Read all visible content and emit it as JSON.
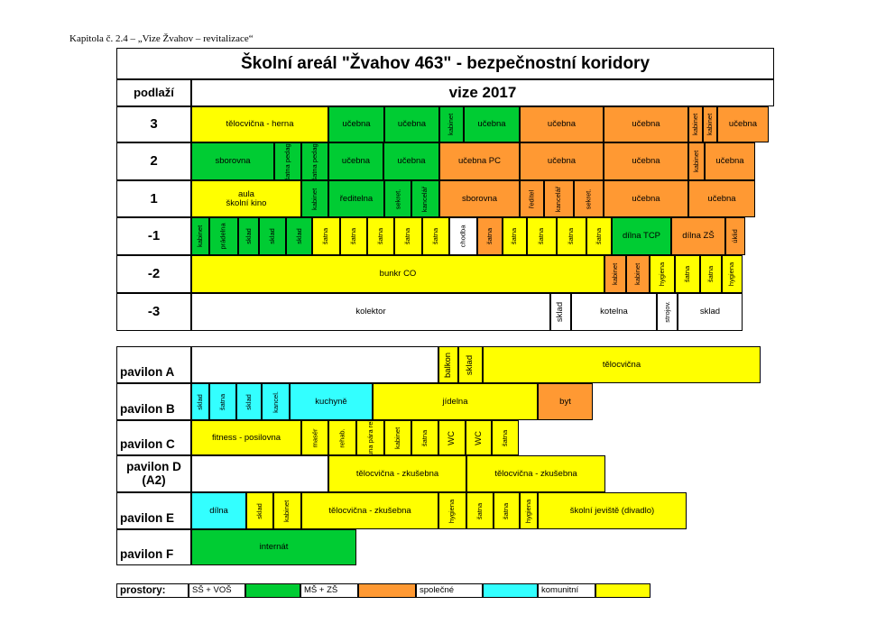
{
  "caption": "Kapitola č. 2.4 – „Vize Žvahov – revitalizace“",
  "title": "Školní areál  \"Žvahov 463\" - bezpečnostní koridory",
  "floor_header": "podlaží",
  "vize": "vize  2017",
  "colors": {
    "yellow": "#ffff00",
    "green": "#00cc33",
    "orange": "#ff9933",
    "cyan": "#33ffff",
    "white": "#ffffff"
  },
  "floors": [
    {
      "label": "3",
      "cells": [
        {
          "text": "tělocvična - herna",
          "w": 152,
          "c": "yellow"
        },
        {
          "text": "učebna",
          "w": 62,
          "c": "green"
        },
        {
          "text": "učebna",
          "w": 61,
          "c": "green"
        },
        {
          "text": "kabinet",
          "w": 27,
          "c": "green",
          "v": true
        },
        {
          "text": "učebna",
          "w": 62,
          "c": "green"
        },
        {
          "text": "učebna",
          "w": 93,
          "c": "orange"
        },
        {
          "text": "učebna",
          "w": 94,
          "c": "orange"
        },
        {
          "text": "kabinet",
          "w": 16,
          "c": "orange",
          "v": true
        },
        {
          "text": "kabinet",
          "w": 16,
          "c": "orange",
          "v": true
        },
        {
          "text": "učebna",
          "w": 57,
          "c": "orange"
        }
      ]
    },
    {
      "label": "2",
      "cells": [
        {
          "text": "sborovna",
          "w": 92,
          "c": "green"
        },
        {
          "text": "šatna\npedag.",
          "w": 30,
          "c": "green",
          "v": true
        },
        {
          "text": "šatna\npedag.",
          "w": 30,
          "c": "green",
          "v": true
        },
        {
          "text": "učebna",
          "w": 61,
          "c": "green"
        },
        {
          "text": "učebna",
          "w": 62,
          "c": "green"
        },
        {
          "text": "učebna PC",
          "w": 89,
          "c": "orange"
        },
        {
          "text": "učebna",
          "w": 93,
          "c": "orange"
        },
        {
          "text": "učebna",
          "w": 94,
          "c": "orange"
        },
        {
          "text": "kabinet",
          "w": 18,
          "c": "orange",
          "v": true
        },
        {
          "text": "učebna",
          "w": 56,
          "c": "orange"
        }
      ]
    },
    {
      "label": "1",
      "cells": [
        {
          "text": "aula\nškolní kino",
          "w": 122,
          "c": "yellow"
        },
        {
          "text": "kabinet",
          "w": 30,
          "c": "green",
          "v": true
        },
        {
          "text": "ředitelna",
          "w": 62,
          "c": "green"
        },
        {
          "text": "sekret.",
          "w": 30,
          "c": "green",
          "v": true
        },
        {
          "text": "kancelář",
          "w": 31,
          "c": "green",
          "v": true
        },
        {
          "text": "sborovna",
          "w": 89,
          "c": "orange"
        },
        {
          "text": "ředitel",
          "w": 27,
          "c": "orange",
          "v": true
        },
        {
          "text": "kancelář",
          "w": 33,
          "c": "orange",
          "v": true
        },
        {
          "text": "sekret.",
          "w": 33,
          "c": "orange",
          "v": true
        },
        {
          "text": "učebna",
          "w": 94,
          "c": "orange"
        },
        {
          "text": "učebna",
          "w": 74,
          "c": "orange"
        }
      ]
    },
    {
      "label": "-1",
      "cells": [
        {
          "text": "kabinet",
          "w": 20,
          "c": "green",
          "v": true
        },
        {
          "text": "prádelna",
          "w": 32,
          "c": "green",
          "v": true
        },
        {
          "text": "sklad",
          "w": 23,
          "c": "green",
          "v": true
        },
        {
          "text": "sklad",
          "w": 30,
          "c": "green",
          "v": true
        },
        {
          "text": "sklad",
          "w": 29,
          "c": "green",
          "v": true
        },
        {
          "text": "šatna",
          "w": 31,
          "c": "yellow",
          "v": true
        },
        {
          "text": "šatna",
          "w": 30,
          "c": "yellow",
          "v": true
        },
        {
          "text": "šatna",
          "w": 30,
          "c": "yellow",
          "v": true
        },
        {
          "text": "šatna",
          "w": 31,
          "c": "yellow",
          "v": true
        },
        {
          "text": "šatna",
          "w": 30,
          "c": "yellow",
          "v": true
        },
        {
          "text": "chodba",
          "w": 31,
          "c": "white",
          "v": true
        },
        {
          "text": "šatna",
          "w": 28,
          "c": "orange",
          "v": true
        },
        {
          "text": "šatna",
          "w": 27,
          "c": "yellow",
          "v": true
        },
        {
          "text": "šatna",
          "w": 33,
          "c": "yellow",
          "v": true
        },
        {
          "text": "šatna",
          "w": 33,
          "c": "yellow",
          "v": true
        },
        {
          "text": "šatna",
          "w": 28,
          "c": "yellow",
          "v": true
        },
        {
          "text": "dílna TCP",
          "w": 66,
          "c": "green"
        },
        {
          "text": "dílna ZŠ",
          "w": 60,
          "c": "orange"
        },
        {
          "text": "úklid",
          "w": 22,
          "c": "orange",
          "v": true
        }
      ]
    },
    {
      "label": "-2",
      "cells": [
        {
          "text": "bunkr  CO",
          "w": 458,
          "c": "yellow"
        },
        {
          "text": "kabinet",
          "w": 24,
          "c": "orange",
          "v": true
        },
        {
          "text": "kabinet",
          "w": 26,
          "c": "orange",
          "v": true
        },
        {
          "text": "hygiena",
          "w": 28,
          "c": "yellow",
          "v": true
        },
        {
          "text": "šatna",
          "w": 28,
          "c": "yellow",
          "v": true
        },
        {
          "text": "šatna",
          "w": 24,
          "c": "yellow",
          "v": true
        },
        {
          "text": "hygiena",
          "w": 23,
          "c": "yellow",
          "v": true
        }
      ]
    },
    {
      "label": "-3",
      "cells": [
        {
          "text": "kolektor",
          "w": 398,
          "c": "white"
        },
        {
          "text": "sklad",
          "w": 23,
          "c": "white",
          "v": true,
          "big": true
        },
        {
          "text": "kotelna",
          "w": 95,
          "c": "white"
        },
        {
          "text": "strojov.",
          "w": 23,
          "c": "white",
          "v": true
        },
        {
          "text": "sklad",
          "w": 72,
          "c": "white"
        }
      ]
    }
  ],
  "pavilions": [
    {
      "label": "pavilon A",
      "cells": [
        {
          "text": "",
          "w": 274,
          "c": "white"
        },
        {
          "text": "balkon",
          "w": 22,
          "c": "yellow",
          "v": true,
          "big": true
        },
        {
          "text": "sklad",
          "w": 27,
          "c": "yellow",
          "v": true,
          "big": true
        },
        {
          "text": "tělocvična",
          "w": 308,
          "c": "yellow"
        }
      ]
    },
    {
      "label": "pavilon B",
      "cells": [
        {
          "text": "sklad",
          "w": 20,
          "c": "cyan",
          "v": true
        },
        {
          "text": "šatna",
          "w": 30,
          "c": "cyan",
          "v": true
        },
        {
          "text": "sklad",
          "w": 28,
          "c": "cyan",
          "v": true
        },
        {
          "text": "kancel.",
          "w": 31,
          "c": "cyan",
          "v": true
        },
        {
          "text": "kuchyně",
          "w": 92,
          "c": "cyan"
        },
        {
          "text": "jídelna",
          "w": 183,
          "c": "yellow"
        },
        {
          "text": "byt",
          "w": 61,
          "c": "orange"
        }
      ]
    },
    {
      "label": "pavilon C",
      "cells": [
        {
          "text": "fitness - posilovna",
          "w": 122,
          "c": "yellow"
        },
        {
          "text": "masér",
          "w": 30,
          "c": "yellow",
          "v": true
        },
        {
          "text": "rehab.",
          "w": 31,
          "c": "yellow",
          "v": true
        },
        {
          "text": "sauna\npára\nrelax",
          "w": 31,
          "c": "yellow",
          "v": true
        },
        {
          "text": "kabinet",
          "w": 30,
          "c": "yellow",
          "v": true
        },
        {
          "text": "šatna",
          "w": 30,
          "c": "yellow",
          "v": true
        },
        {
          "text": "WC",
          "w": 30,
          "c": "yellow",
          "v": true,
          "big": true
        },
        {
          "text": "WC",
          "w": 29,
          "c": "yellow",
          "v": true,
          "big": true
        },
        {
          "text": "šatna",
          "w": 30,
          "c": "yellow",
          "v": true
        }
      ]
    },
    {
      "label": "pavilon D\n(A2)",
      "center": true,
      "cells": [
        {
          "text": "",
          "w": 152,
          "c": "white"
        },
        {
          "text": "tělocvična - zkušebna",
          "w": 153,
          "c": "yellow"
        },
        {
          "text": "tělocvična - zkušebna",
          "w": 154,
          "c": "yellow"
        }
      ]
    },
    {
      "label": "pavilon E",
      "cells": [
        {
          "text": "dílna",
          "w": 61,
          "c": "cyan"
        },
        {
          "text": "sklad",
          "w": 30,
          "c": "yellow",
          "v": true
        },
        {
          "text": "kabinet",
          "w": 31,
          "c": "yellow",
          "v": true
        },
        {
          "text": "tělocvična - zkušebna",
          "w": 152,
          "c": "yellow"
        },
        {
          "text": "hygiena",
          "w": 31,
          "c": "yellow",
          "v": true
        },
        {
          "text": "šatna",
          "w": 30,
          "c": "yellow",
          "v": true
        },
        {
          "text": "šatna",
          "w": 29,
          "c": "yellow",
          "v": true
        },
        {
          "text": "hygiena",
          "w": 20,
          "c": "yellow",
          "v": true
        },
        {
          "text": "školní jeviště (divadlo)",
          "w": 165,
          "c": "yellow"
        }
      ]
    },
    {
      "label": "pavilon F",
      "cells": [
        {
          "text": "internát",
          "w": 183,
          "c": "green"
        }
      ]
    }
  ],
  "legend": {
    "label": "prostory:",
    "items": [
      {
        "text": "SŠ + VOŠ",
        "c": "green"
      },
      {
        "text": "MŠ + ZŠ",
        "c": "orange"
      },
      {
        "text": "společné",
        "c": "cyan"
      },
      {
        "text": "komunitní",
        "c": "yellow"
      }
    ]
  }
}
